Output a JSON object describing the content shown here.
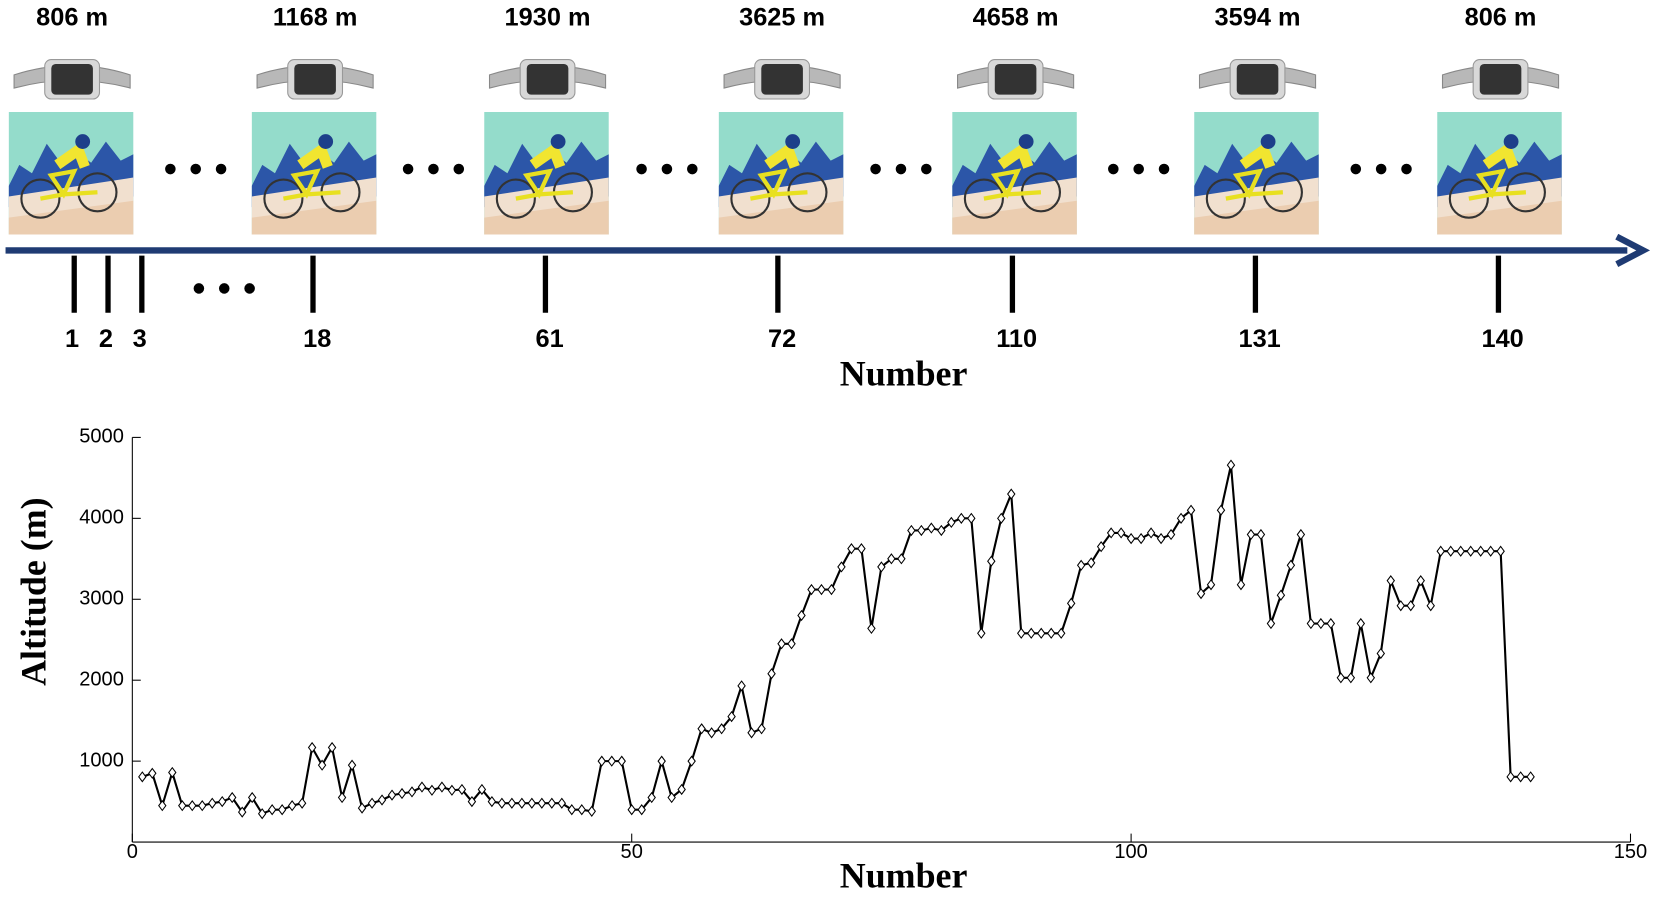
{
  "timeline": {
    "altitudes": [
      "806 m",
      "1168 m",
      "1930 m",
      "3625 m",
      "4658 m",
      "3594 m",
      "806 m"
    ],
    "ticks": [
      "1",
      "2",
      "3",
      "18",
      "61",
      "72",
      "110",
      "131",
      "140"
    ],
    "xlabel": "Number"
  },
  "chart_data": {
    "type": "line",
    "xlabel": "Number",
    "ylabel": "Altitude (m)",
    "color": "#000000",
    "marker": "diamond",
    "xlim": [
      0,
      150
    ],
    "xticks": [
      0,
      50,
      100,
      150
    ],
    "ylim": [
      0,
      5000
    ],
    "yticks": [
      1000,
      2000,
      3000,
      4000,
      5000
    ],
    "grid": false,
    "x": [
      1,
      2,
      3,
      4,
      5,
      6,
      7,
      8,
      9,
      10,
      11,
      12,
      13,
      14,
      15,
      16,
      17,
      18,
      19,
      20,
      21,
      22,
      23,
      24,
      25,
      26,
      27,
      28,
      29,
      30,
      31,
      32,
      33,
      34,
      35,
      36,
      37,
      38,
      39,
      40,
      41,
      42,
      43,
      44,
      45,
      46,
      47,
      48,
      49,
      50,
      51,
      52,
      53,
      54,
      55,
      56,
      57,
      58,
      59,
      60,
      61,
      62,
      63,
      64,
      65,
      66,
      67,
      68,
      69,
      70,
      71,
      72,
      73,
      74,
      75,
      76,
      77,
      78,
      79,
      80,
      81,
      82,
      83,
      84,
      85,
      86,
      87,
      88,
      89,
      90,
      91,
      92,
      93,
      94,
      95,
      96,
      97,
      98,
      99,
      100,
      101,
      102,
      103,
      104,
      105,
      106,
      107,
      108,
      109,
      110,
      111,
      112,
      113,
      114,
      115,
      116,
      117,
      118,
      119,
      120,
      121,
      122,
      123,
      124,
      125,
      126,
      127,
      128,
      129,
      130,
      131,
      132,
      133,
      134,
      135,
      136,
      137,
      138,
      139,
      140
    ],
    "series": [
      {
        "name": "Altitude",
        "color": "#000000",
        "values": [
          806,
          850,
          450,
          860,
          450,
          450,
          450,
          480,
          500,
          550,
          370,
          550,
          350,
          400,
          400,
          450,
          480,
          1168,
          950,
          1168,
          550,
          950,
          420,
          480,
          520,
          580,
          600,
          620,
          680,
          640,
          680,
          640,
          650,
          500,
          650,
          500,
          480,
          480,
          480,
          480,
          480,
          480,
          480,
          400,
          400,
          380,
          1000,
          1000,
          1000,
          400,
          400,
          550,
          1000,
          550,
          650,
          1000,
          1400,
          1350,
          1400,
          1550,
          1930,
          1350,
          1400,
          2080,
          2450,
          2450,
          2800,
          3120,
          3120,
          3120,
          3400,
          3625,
          3625,
          2640,
          3400,
          3500,
          3500,
          3850,
          3850,
          3880,
          3850,
          3950,
          4000,
          4000,
          2580,
          3470,
          4000,
          4300,
          2580,
          2580,
          2580,
          2580,
          2580,
          2950,
          3420,
          3450,
          3650,
          3820,
          3820,
          3750,
          3750,
          3820,
          3750,
          3800,
          4000,
          4100,
          3070,
          3180,
          4100,
          4658,
          3180,
          3800,
          3800,
          2700,
          3050,
          3420,
          3800,
          2700,
          2700,
          2700,
          2030,
          2030,
          2700,
          2030,
          2330,
          3230,
          2920,
          2920,
          3230,
          2920,
          3594,
          3594,
          3594,
          3594,
          3594,
          3594,
          3594,
          806,
          806,
          806
        ]
      }
    ]
  }
}
